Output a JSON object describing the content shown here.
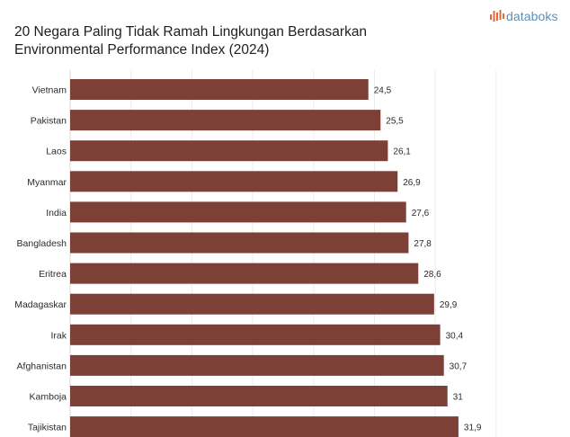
{
  "title_line1": "20 Negara Paling Tidak Ramah Lingkungan Berdasarkan",
  "title_line2": "Environmental Performance Index (2024)",
  "logo": {
    "text": "databoks",
    "icon": "bar-chart-icon",
    "color": "#5e8fb3",
    "icon_color": "#e8663b"
  },
  "chart_data": {
    "type": "bar",
    "orientation": "horizontal",
    "categories": [
      "Vietnam",
      "Pakistan",
      "Laos",
      "Myanmar",
      "India",
      "Bangladesh",
      "Eritrea",
      "Madagaskar",
      "Irak",
      "Afghanistan",
      "Kamboja",
      "Tajikistan"
    ],
    "values": [
      24.5,
      25.5,
      26.1,
      26.9,
      27.6,
      27.8,
      28.6,
      29.9,
      30.4,
      30.7,
      31,
      31.9
    ],
    "value_labels": [
      "24,5",
      "25,5",
      "26,1",
      "26,9",
      "27,6",
      "27,8",
      "28,6",
      "29,9",
      "30,4",
      "30,7",
      "31",
      "31,9"
    ],
    "xlim": [
      0,
      35
    ],
    "bar_color": "#7d4037",
    "grid": true,
    "xlabel": "",
    "ylabel": ""
  }
}
